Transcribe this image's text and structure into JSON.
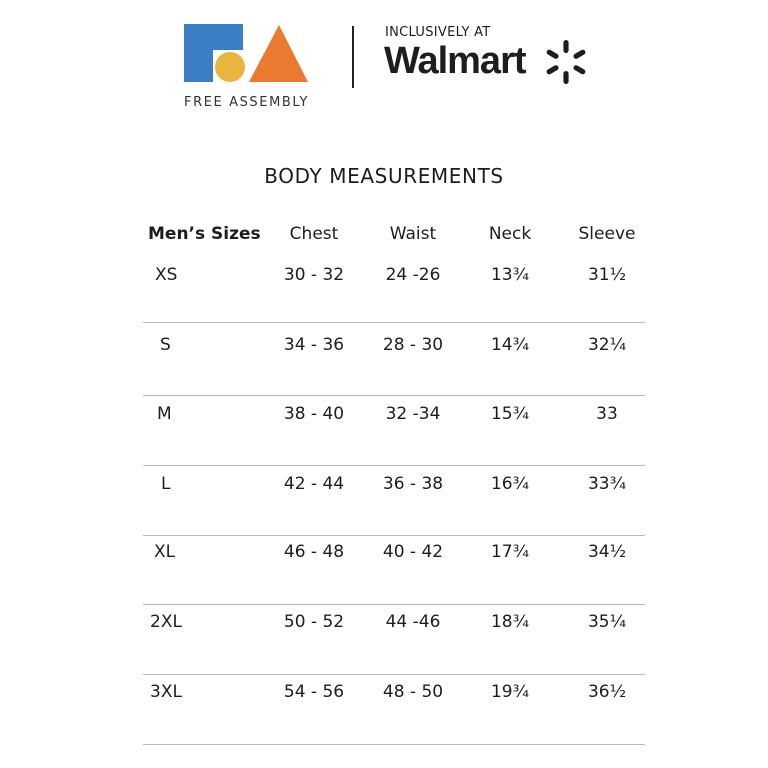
{
  "brand": {
    "logo_text": "FREE ASSEMBLY",
    "tagline": "INCLUSIVELY AT",
    "retailer": "Walmart",
    "colors": {
      "blue": "#3a7fc3",
      "yellow": "#eab53f",
      "orange": "#e97a2f"
    }
  },
  "title": "BODY MEASUREMENTS",
  "table": {
    "headers": [
      "Men’s Sizes",
      "Chest",
      "Waist",
      "Neck",
      "Sleeve"
    ],
    "rows": [
      {
        "size": "XS",
        "chest": "30 - 32",
        "waist": "24 -26",
        "neck": "13¾",
        "sleeve": "31½"
      },
      {
        "size": "S",
        "chest": "34 - 36",
        "waist": "28 - 30",
        "neck": "14¾",
        "sleeve": "32¼"
      },
      {
        "size": "M",
        "chest": "38 - 40",
        "waist": "32 -34",
        "neck": "15¾",
        "sleeve": "33"
      },
      {
        "size": "L",
        "chest": "42 - 44",
        "waist": "36 - 38",
        "neck": "16¾",
        "sleeve": "33¾"
      },
      {
        "size": "XL",
        "chest": "46 - 48",
        "waist": "40 - 42",
        "neck": "17¾",
        "sleeve": "34½"
      },
      {
        "size": "2XL",
        "chest": "50 - 52",
        "waist": "44 -46",
        "neck": "18¾",
        "sleeve": "35¼"
      },
      {
        "size": "3XL",
        "chest": "54 - 56",
        "waist": "48 - 50",
        "neck": "19¾",
        "sleeve": "36½"
      }
    ]
  }
}
